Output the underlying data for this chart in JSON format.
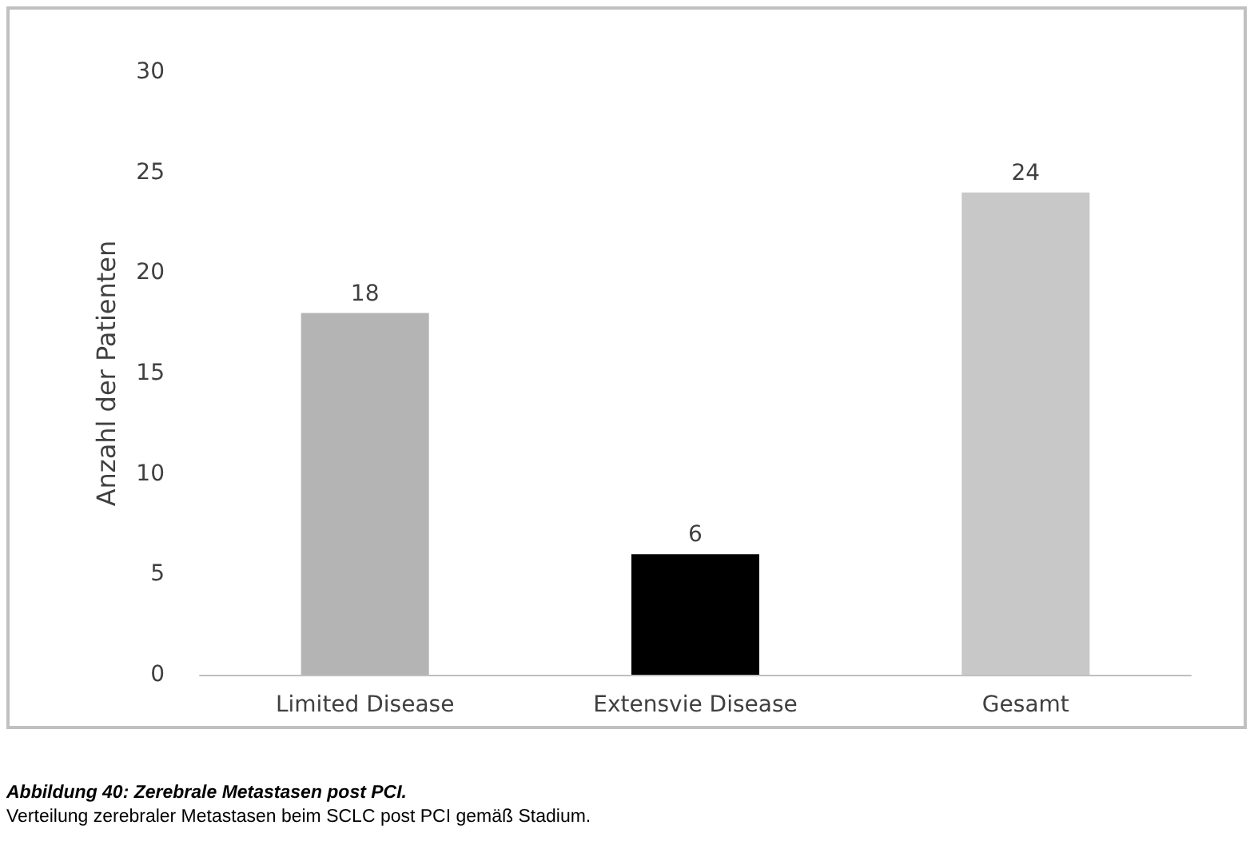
{
  "chart_data": {
    "type": "bar",
    "ylabel": "Anzahl der Patienten",
    "categories": [
      "Limited Disease",
      "Extensvie Disease",
      "Gesamt"
    ],
    "values": [
      18,
      6,
      24
    ],
    "colors": [
      "#b4b4b4",
      "#000000",
      "#c8c8c8"
    ],
    "ylim": [
      0,
      30
    ],
    "yticks": [
      0,
      5,
      10,
      15,
      20,
      25,
      30
    ],
    "grid": false,
    "data_labels": true,
    "annotations": [
      "Abbildung 40: Zerebrale Metastasen post PCI.",
      "Verteilung zerebraler Metastasen beim SCLC post PCI gemäß Stadium."
    ]
  }
}
